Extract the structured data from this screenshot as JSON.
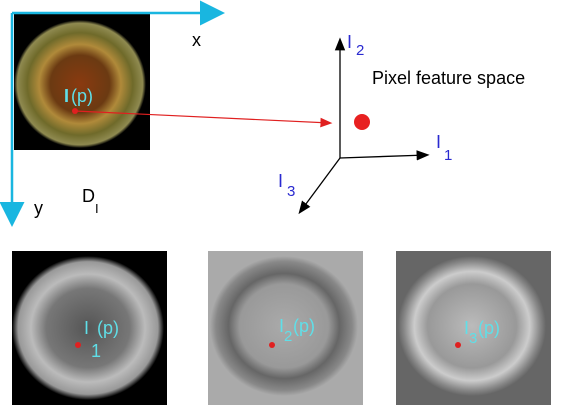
{
  "image_axes": {
    "x_label": "x",
    "y_label": "y",
    "domain_label": "D",
    "domain_subscript": "I"
  },
  "main_image": {
    "point_label": "I",
    "point_arg": "(p)"
  },
  "feature_space": {
    "title": "Pixel feature space",
    "axes": [
      {
        "label": "I",
        "subscript": "1"
      },
      {
        "label": "I",
        "subscript": "2"
      },
      {
        "label": "I",
        "subscript": "3"
      }
    ]
  },
  "channels": [
    {
      "label": "I",
      "subscript": "1",
      "arg": "(p)"
    },
    {
      "label": "I",
      "subscript": "2",
      "arg": "(p)"
    },
    {
      "label": "I",
      "subscript": "3",
      "arg": "(p)"
    }
  ]
}
